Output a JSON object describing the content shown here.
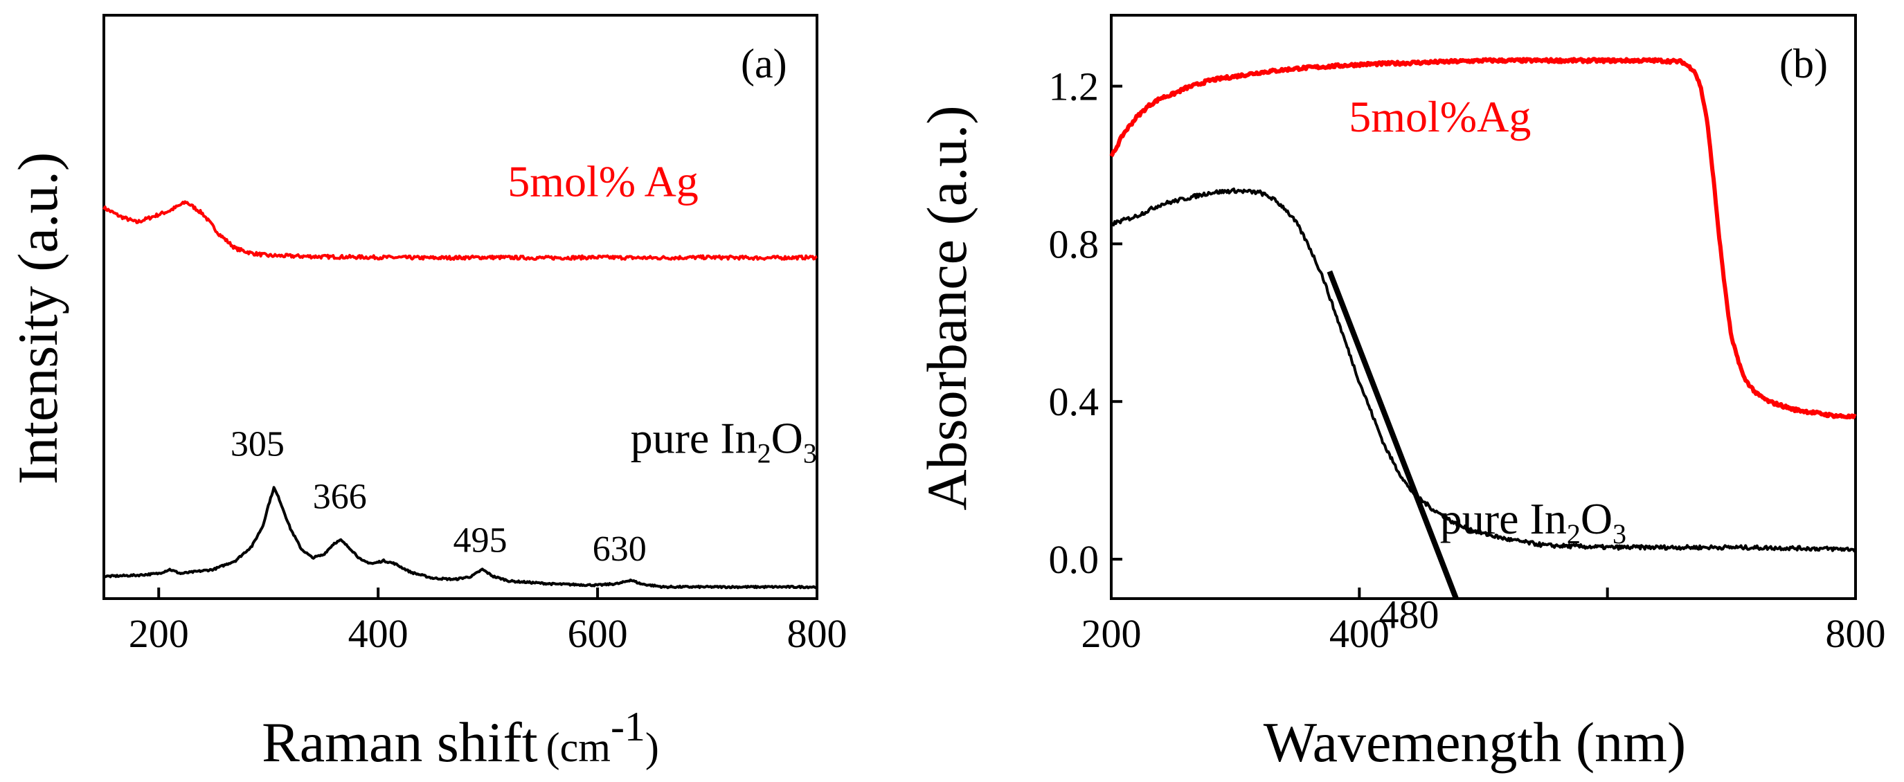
{
  "chart_data": [
    {
      "panel": "(a)",
      "type": "line",
      "xlabel": "Raman shift",
      "xlabel_unit_prefix": "(cm",
      "xlabel_unit_exp": "-1",
      "xlabel_unit_suffix": ")",
      "ylabel": "Intensity (a.u.)",
      "xlim": [
        150,
        800
      ],
      "ylim": [
        0,
        1
      ],
      "xticks": [
        200,
        400,
        600,
        800
      ],
      "series": [
        {
          "name": "5mol% Ag",
          "color": "#ff0000",
          "x": [
            150,
            165,
            180,
            195,
            210,
            225,
            240,
            255,
            270,
            285,
            300,
            350,
            400,
            450,
            500,
            550,
            600,
            650,
            700,
            750,
            800
          ],
          "y": [
            0.67,
            0.655,
            0.645,
            0.655,
            0.665,
            0.68,
            0.66,
            0.625,
            0.6,
            0.592,
            0.588,
            0.586,
            0.585,
            0.584,
            0.585,
            0.584,
            0.585,
            0.584,
            0.585,
            0.584,
            0.585
          ]
        },
        {
          "name": "pure In2O3",
          "color": "#000000",
          "x": [
            150,
            180,
            200,
            210,
            220,
            250,
            270,
            285,
            295,
            300,
            305,
            310,
            320,
            330,
            340,
            350,
            360,
            366,
            375,
            385,
            395,
            405,
            415,
            430,
            450,
            470,
            485,
            495,
            505,
            520,
            560,
            600,
            620,
            630,
            640,
            660,
            700,
            800
          ],
          "y": [
            0.038,
            0.04,
            0.043,
            0.05,
            0.043,
            0.05,
            0.065,
            0.09,
            0.125,
            0.16,
            0.19,
            0.17,
            0.12,
            0.085,
            0.07,
            0.075,
            0.095,
            0.1,
            0.085,
            0.065,
            0.06,
            0.065,
            0.06,
            0.045,
            0.035,
            0.033,
            0.038,
            0.05,
            0.038,
            0.03,
            0.025,
            0.023,
            0.026,
            0.032,
            0.025,
            0.02,
            0.02,
            0.02
          ]
        }
      ],
      "annotations": [
        {
          "text": "305",
          "x": 290,
          "y": 0.245
        },
        {
          "text": "366",
          "x": 365,
          "y": 0.155
        },
        {
          "text": "495",
          "x": 493,
          "y": 0.08
        },
        {
          "text": "630",
          "x": 620,
          "y": 0.065
        }
      ],
      "series_labels": [
        {
          "series": 0,
          "text": "5mol% Ag",
          "x": 605,
          "y": 0.69
        },
        {
          "series": 1,
          "text_main": "pure In",
          "sub1": "2",
          "mid": "O",
          "sub2": "3",
          "x": 630,
          "y": 0.25
        }
      ]
    },
    {
      "panel": "(b)",
      "type": "line",
      "xlabel": "Wavemength (nm)",
      "ylabel": "Absorbance (a.u.)",
      "xlim": [
        200,
        800
      ],
      "ylim": [
        -0.1,
        1.38
      ],
      "xticks": [
        200,
        400,
        600,
        800
      ],
      "xtick_labels": [
        "200",
        "400",
        "",
        "800"
      ],
      "yticks": [
        0.0,
        0.4,
        0.8,
        1.2
      ],
      "ytick_labels": [
        "0.0",
        "0.4",
        "0.8",
        "1.2"
      ],
      "series": [
        {
          "name": "5mol%Ag",
          "color": "#ff0000",
          "x": [
            200,
            210,
            220,
            230,
            240,
            250,
            260,
            270,
            280,
            300,
            320,
            350,
            400,
            450,
            500,
            550,
            600,
            640,
            660,
            670,
            675,
            680,
            685,
            690,
            695,
            700,
            710,
            720,
            730,
            750,
            780,
            800
          ],
          "y": [
            1.02,
            1.08,
            1.12,
            1.15,
            1.17,
            1.18,
            1.195,
            1.205,
            1.215,
            1.225,
            1.235,
            1.245,
            1.255,
            1.26,
            1.265,
            1.265,
            1.265,
            1.265,
            1.262,
            1.24,
            1.2,
            1.12,
            0.98,
            0.82,
            0.68,
            0.56,
            0.46,
            0.42,
            0.4,
            0.38,
            0.365,
            0.36
          ]
        },
        {
          "name": "pure In2O3",
          "color": "#000000",
          "x": [
            200,
            220,
            240,
            260,
            280,
            300,
            320,
            330,
            340,
            350,
            360,
            370,
            380,
            390,
            400,
            410,
            420,
            430,
            440,
            450,
            460,
            470,
            480,
            500,
            520,
            550,
            600,
            650,
            700,
            750,
            800
          ],
          "y": [
            0.85,
            0.87,
            0.9,
            0.915,
            0.93,
            0.935,
            0.93,
            0.915,
            0.89,
            0.85,
            0.79,
            0.72,
            0.63,
            0.54,
            0.45,
            0.37,
            0.29,
            0.23,
            0.18,
            0.15,
            0.125,
            0.105,
            0.085,
            0.065,
            0.05,
            0.035,
            0.03,
            0.03,
            0.03,
            0.028,
            0.025
          ]
        }
      ],
      "fit_line": {
        "x": [
          376,
          478
        ],
        "y": [
          0.73,
          -0.1
        ],
        "color": "#000000"
      },
      "annotations": [
        {
          "text": "480",
          "x": 440,
          "y": -0.175
        }
      ],
      "series_labels": [
        {
          "series": 0,
          "text": "5mol%Ag",
          "x": 465,
          "y": 1.085
        },
        {
          "series": 1,
          "text_main": "pure In",
          "sub1": "2",
          "mid": "O",
          "sub2": "3",
          "x": 465,
          "y": 0.065
        }
      ]
    }
  ]
}
